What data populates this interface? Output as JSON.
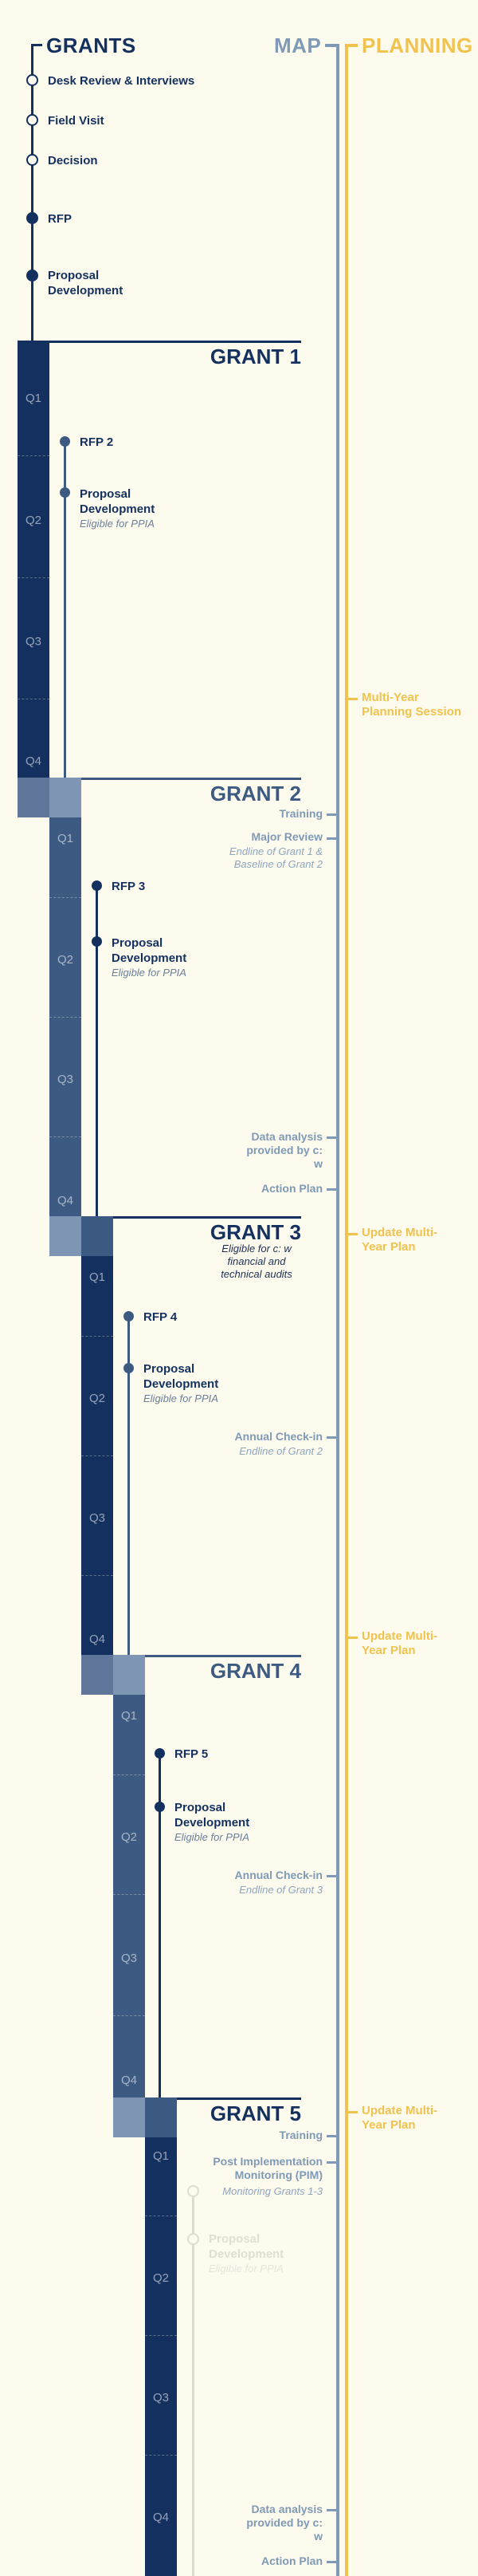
{
  "headers": {
    "grants": "GRANTS",
    "map": "MAP",
    "planning": "PLANNING"
  },
  "colors": {
    "navy": "#13305f",
    "steel": "#3d5a82",
    "map_blue": "#7f9ab6",
    "planning_yellow": "#f2c24f",
    "background": "#fdfbee"
  },
  "initial_steps": [
    "Desk Review & Interviews",
    "Field Visit",
    "Decision",
    "RFP",
    "Proposal Development"
  ],
  "quarters": [
    "Q1",
    "Q2",
    "Q3",
    "Q4"
  ],
  "grants": [
    {
      "title": "GRANT 1",
      "rfp": "RFP 2",
      "proposal": "Proposal Development",
      "eligible": "Eligible for PPIA",
      "note": ""
    },
    {
      "title": "GRANT 2",
      "rfp": "RFP 3",
      "proposal": "Proposal Development",
      "eligible": "Eligible for PPIA",
      "note": ""
    },
    {
      "title": "GRANT 3",
      "rfp": "RFP 4",
      "proposal": "Proposal Development",
      "eligible": "Eligible for PPIA",
      "note": "Eligible for c: w financial and technical audits"
    },
    {
      "title": "GRANT 4",
      "rfp": "RFP 5",
      "proposal": "Proposal Development",
      "eligible": "Eligible for PPIA",
      "note": ""
    },
    {
      "title": "GRANT 5",
      "rfp": "",
      "proposal": "Proposal Development",
      "eligible": "Eligible for PPIA",
      "note": ""
    }
  ],
  "map_events": [
    {
      "label": "Training",
      "sub": ""
    },
    {
      "label": "Major Review",
      "sub": "Endline of Grant 1 & Baseline of Grant 2"
    },
    {
      "label": "Data analysis provided by c: w",
      "sub": ""
    },
    {
      "label": "Action Plan",
      "sub": ""
    },
    {
      "label": "Annual Check-in",
      "sub": "Endline of Grant 2"
    },
    {
      "label": "Annual Check-in",
      "sub": "Endline of Grant 3"
    },
    {
      "label": "Training",
      "sub": ""
    },
    {
      "label": "Post Implementation Monitoring (PIM)",
      "sub": "Monitoring Grants 1-3"
    },
    {
      "label": "Data analysis provided by c: w",
      "sub": ""
    },
    {
      "label": "Action Plan",
      "sub": ""
    }
  ],
  "planning_events": [
    "Multi-Year Planning Session",
    "Update Multi-Year Plan",
    "Update Multi-Year Plan",
    "Update Multi-Year Plan"
  ]
}
